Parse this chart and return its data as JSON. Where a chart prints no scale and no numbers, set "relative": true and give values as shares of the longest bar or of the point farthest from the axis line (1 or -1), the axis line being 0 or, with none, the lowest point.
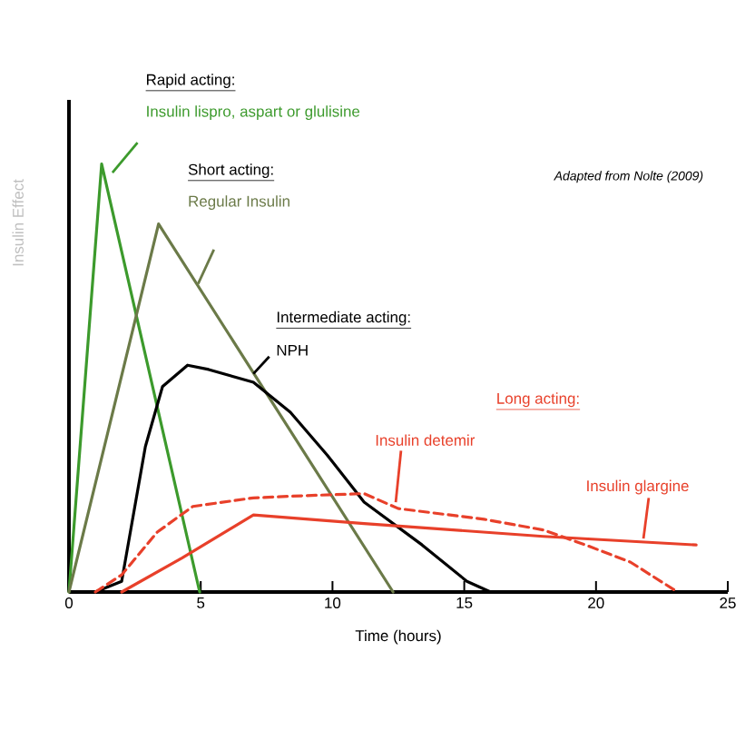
{
  "chart_data": {
    "type": "line",
    "relative": true,
    "xlabel": "Time (hours)",
    "ylabel": "Insulin Effect",
    "xlim": [
      0,
      25
    ],
    "xticks": [
      0,
      5,
      10,
      15,
      20,
      25
    ],
    "marker": "none",
    "annotations": [
      "Rapid acting:",
      "Short acting:",
      "Intermediate acting:",
      "Long acting:",
      "Adapted from Nolte (2009)"
    ],
    "series": [
      {
        "name": "Insulin lispro, aspart or glulisine",
        "color": "#3c9a2c",
        "line_style": "solid",
        "x": [
          0,
          1.24,
          4.96
        ],
        "values": [
          0,
          1,
          0
        ]
      },
      {
        "name": "Regular Insulin",
        "color": "#6b7a48",
        "line_style": "solid",
        "x": [
          0,
          3.4,
          12.3
        ],
        "values": [
          0,
          0.86,
          0
        ]
      },
      {
        "name": "NPH",
        "color": "#000000",
        "line_style": "solid",
        "x": [
          1.0,
          1.4,
          2.0,
          2.9,
          3.55,
          4.5,
          5.3,
          7.0,
          8.4,
          9.8,
          11.2,
          13.4,
          15.1,
          16.0
        ],
        "values": [
          0,
          0.01,
          0.025,
          0.34,
          0.48,
          0.53,
          0.52,
          0.49,
          0.42,
          0.32,
          0.21,
          0.11,
          0.025,
          0
        ]
      },
      {
        "name": "Insulin detemir",
        "color": "#e8402a",
        "line_style": "dashed",
        "x": [
          1.0,
          2.0,
          3.35,
          4.7,
          7.0,
          8.9,
          11.2,
          12.5,
          15.75,
          18.0,
          19.6,
          21.3,
          23.1
        ],
        "values": [
          0,
          0.04,
          0.14,
          0.2,
          0.22,
          0.225,
          0.23,
          0.195,
          0.17,
          0.145,
          0.11,
          0.07,
          0
        ]
      },
      {
        "name": "Insulin glargine",
        "color": "#e8402a",
        "line_style": "solid",
        "x": [
          2.0,
          4.3,
          7.0,
          11.2,
          18.0,
          23.8
        ],
        "values": [
          0,
          0.08,
          0.18,
          0.16,
          0.13,
          0.11
        ]
      }
    ]
  }
}
